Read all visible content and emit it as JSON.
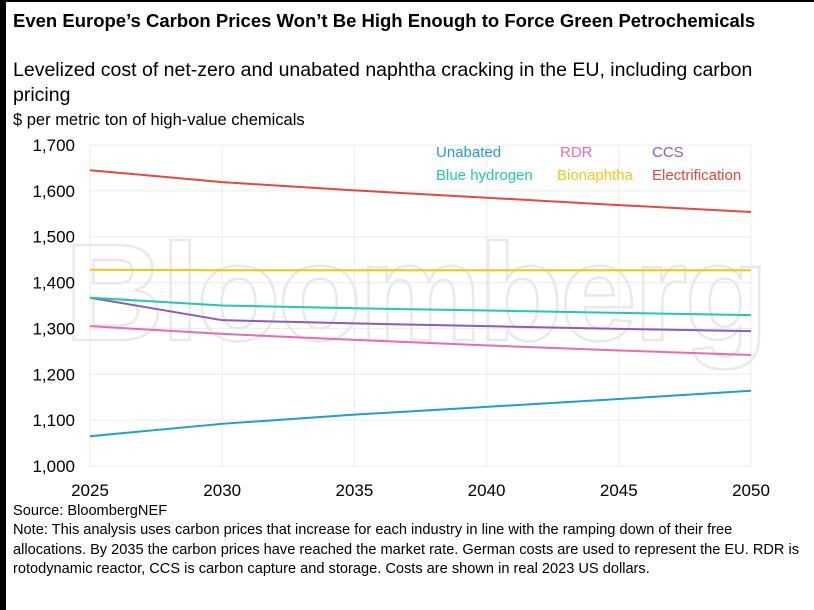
{
  "title": "Even Europe’s Carbon Prices Won’t Be High Enough to Force Green Petrochemicals",
  "subtitle": "Levelized cost of net-zero and unabated naphtha cracking in the EU, including carbon pricing",
  "unit_label": "$ per metric ton of high-value chemicals",
  "watermark": "Bloomberg",
  "source": "Source: BloombergNEF",
  "note": "Note: This analysis uses carbon prices that increase for each industry in line with the ramping down of their free allocations. By 2035 the carbon prices have reached the market rate. German costs are used to represent the EU. RDR is rotodynamic reactor, CCS is carbon capture and storage. Costs are shown in real 2023 US dollars.",
  "chart_data": {
    "type": "line",
    "title": "Even Europe’s Carbon Prices Won’t Be High Enough to Force Green Petrochemicals",
    "subtitle": "Levelized cost of net-zero and unabated naphtha cracking in the EU, including carbon pricing",
    "xlabel": "",
    "ylabel": "$ per metric ton of high-value chemicals",
    "x": [
      2025,
      2030,
      2035,
      2040,
      2045,
      2050
    ],
    "xlim": [
      2025,
      2050
    ],
    "ylim": [
      1000,
      1700
    ],
    "xticks": [
      "2025",
      "2030",
      "2035",
      "2040",
      "2045",
      "2050"
    ],
    "yticks": [
      1000,
      1100,
      1200,
      1300,
      1400,
      1500,
      1600,
      1700
    ],
    "ytick_labels": [
      "1,000",
      "1,100",
      "1,200",
      "1,300",
      "1,400",
      "1,500",
      "1,600",
      "1,700"
    ],
    "grid": true,
    "legend_position": "top-right",
    "series": [
      {
        "name": "Unabated",
        "color": "#1f9fd0",
        "values": [
          1065,
          1092,
          1112,
          1129,
          1146,
          1164
        ]
      },
      {
        "name": "RDR",
        "color": "#e96bb4",
        "values": [
          1305,
          1288,
          1275,
          1263,
          1252,
          1242
        ]
      },
      {
        "name": "CCS",
        "color": "#8a5cc0",
        "values": [
          1367,
          1318,
          1311,
          1305,
          1299,
          1294
        ]
      },
      {
        "name": "Blue hydrogen",
        "color": "#22c9b0",
        "values": [
          1367,
          1350,
          1344,
          1339,
          1334,
          1329
        ]
      },
      {
        "name": "Bionaphtha",
        "color": "#f5c518",
        "values": [
          1428,
          1427,
          1427,
          1427,
          1427,
          1427
        ]
      },
      {
        "name": "Electrification",
        "color": "#e8473d",
        "values": [
          1645,
          1619,
          1601,
          1585,
          1569,
          1554
        ]
      }
    ],
    "legend": [
      {
        "label": "Unabated",
        "color": "#1f9fd0"
      },
      {
        "label": "RDR",
        "color": "#e96bb4"
      },
      {
        "label": "CCS",
        "color": "#8a5cc0"
      },
      {
        "label": "Blue hydrogen",
        "color": "#22c9b0"
      },
      {
        "label": "Bionaphtha",
        "color": "#f5c518"
      },
      {
        "label": "Electrification",
        "color": "#e8473d"
      }
    ]
  }
}
